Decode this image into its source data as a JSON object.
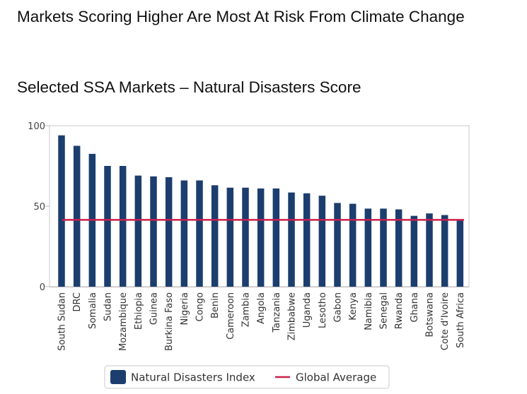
{
  "page": {
    "title": "Markets Scoring Higher Are Most At Risk From Climate Change",
    "subtitle": "Selected SSA Markets – Natural Disasters Score"
  },
  "colors": {
    "bar": "#1c3e6e",
    "average_line": "#cc1f4a",
    "axis": "#c0c0c0",
    "frame": "#c9c9c9"
  },
  "chart_data": {
    "type": "bar",
    "title": "",
    "xlabel": "",
    "ylabel": "",
    "ylim": [
      0,
      100
    ],
    "yticks": [
      0,
      50,
      100
    ],
    "grid": false,
    "legend_position": "bottom-center",
    "categories": [
      "South Sudan",
      "DRC",
      "Somalia",
      "Sudan",
      "Mozambique",
      "Ethiopia",
      "Guinea",
      "Burkina Faso",
      "Nigeria",
      "Congo",
      "Benin",
      "Cameroon",
      "Zambia",
      "Angola",
      "Tanzania",
      "Zimbabwe",
      "Uganda",
      "Lesotho",
      "Gabon",
      "Kenya",
      "Namibia",
      "Senegal",
      "Rwanda",
      "Ghana",
      "Botswana",
      "Cote d'Ivoire",
      "South Africa"
    ],
    "series": [
      {
        "name": "Natural Disasters Index",
        "type": "bar",
        "values": [
          94,
          87.5,
          82.5,
          75,
          75,
          69,
          68.5,
          68,
          66,
          66,
          63,
          61.5,
          61.5,
          61,
          61,
          58.5,
          58,
          56.5,
          52,
          51.5,
          48.5,
          48.5,
          48,
          44,
          45.5,
          44.5,
          41
        ]
      },
      {
        "name": "Global Average",
        "type": "line",
        "value": 41.5
      }
    ]
  }
}
